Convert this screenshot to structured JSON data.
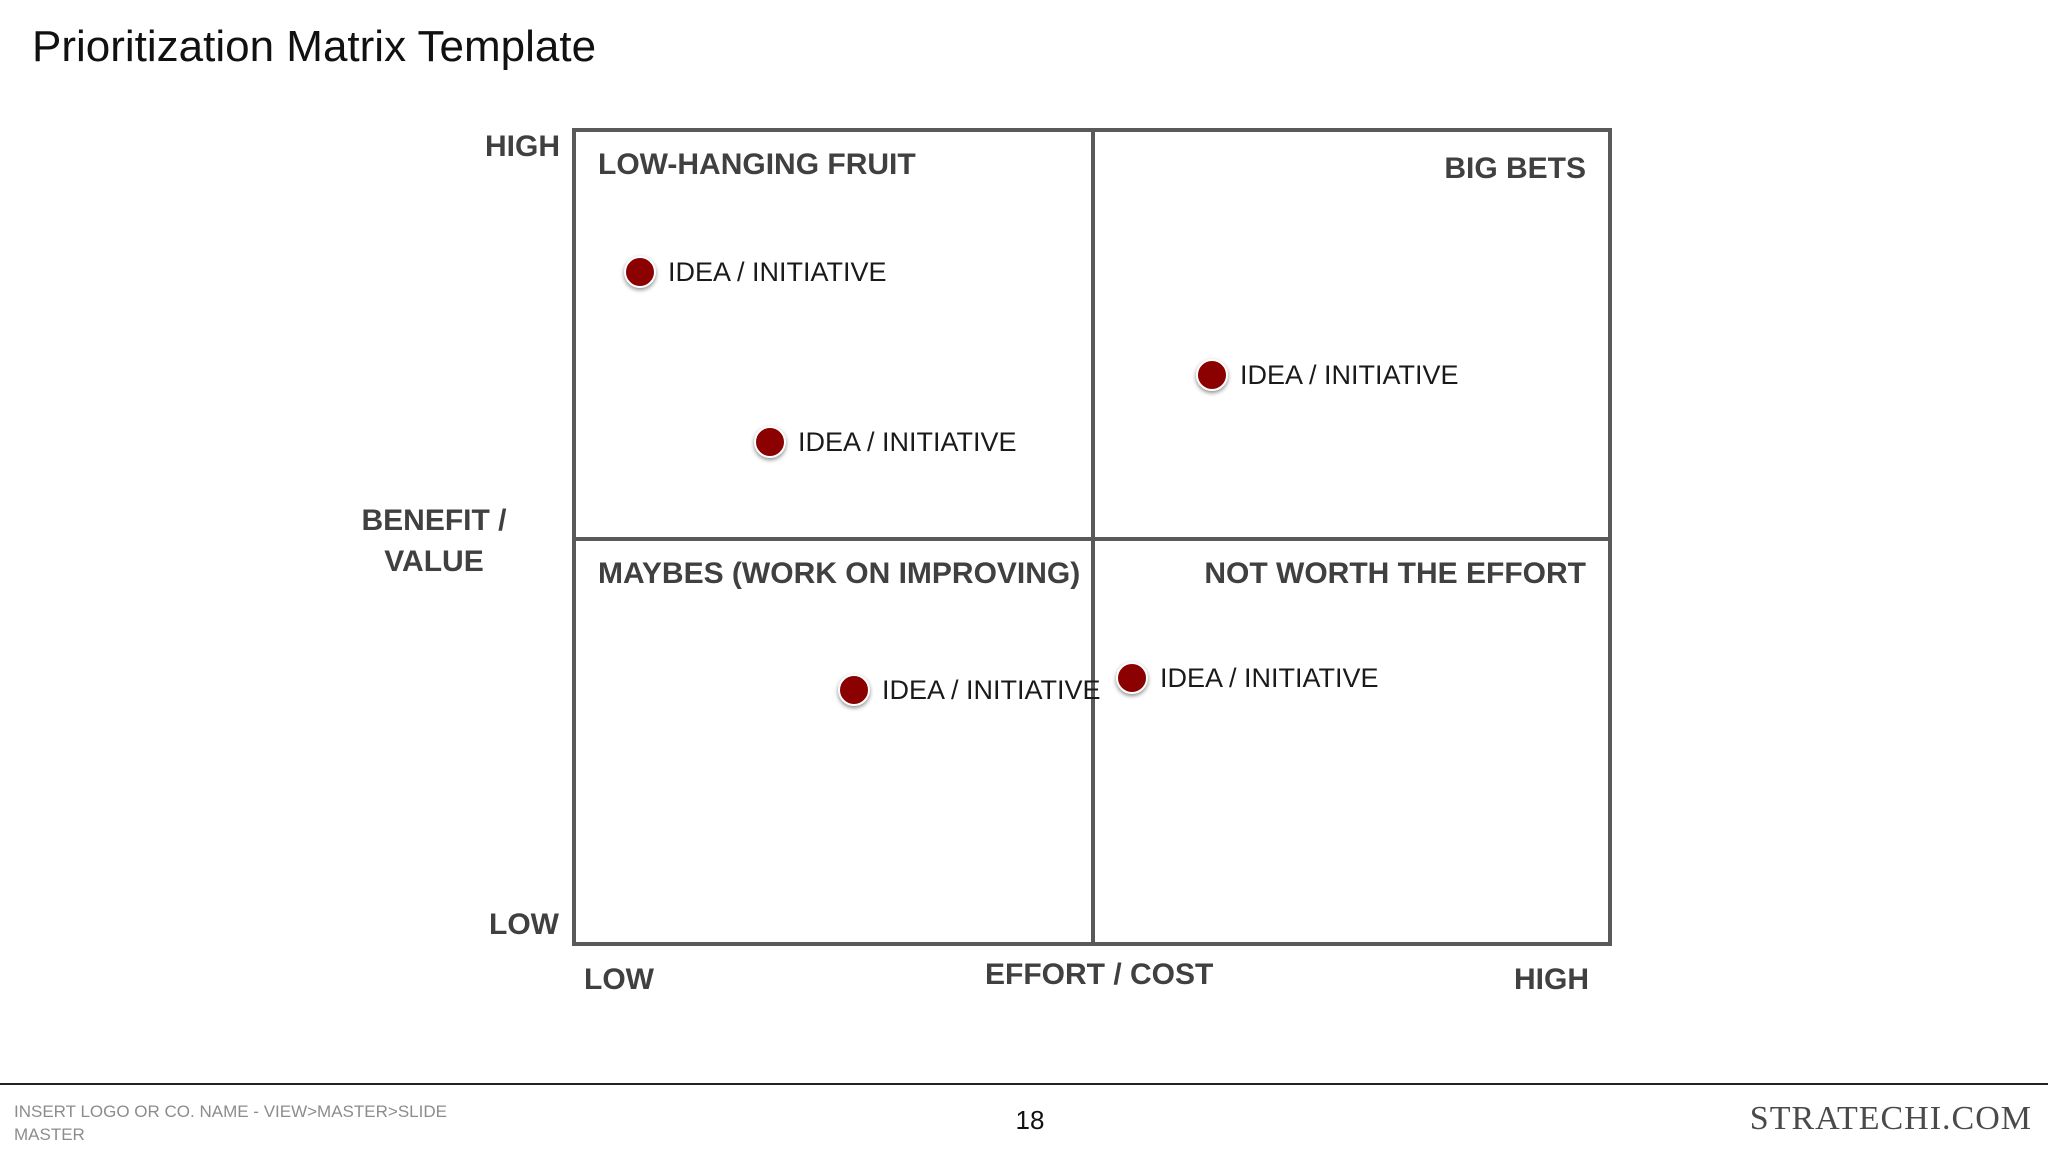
{
  "slide": {
    "title": "Prioritization Matrix Template"
  },
  "axes": {
    "y_high": "HIGH",
    "y_low": "LOW",
    "y_title": "BENEFIT / VALUE",
    "y_title_line1": "BENEFIT /",
    "y_title_line2": "VALUE",
    "x_low": "LOW",
    "x_title": "EFFORT / COST",
    "x_high": "HIGH"
  },
  "quadrants": {
    "top_left": "LOW-HANGING FRUIT",
    "top_right": "BIG BETS",
    "bottom_left": "MAYBES (WORK ON IMPROVING)",
    "bottom_right": "NOT WORTH THE EFFORT"
  },
  "items": [
    {
      "label": "IDEA / INITIATIVE",
      "quadrant": "LOW-HANGING FRUIT"
    },
    {
      "label": "IDEA / INITIATIVE",
      "quadrant": "LOW-HANGING FRUIT"
    },
    {
      "label": "IDEA / INITIATIVE",
      "quadrant": "BIG BETS"
    },
    {
      "label": "IDEA / INITIATIVE",
      "quadrant": "MAYBES (WORK ON IMPROVING)"
    },
    {
      "label": "IDEA / INITIATIVE",
      "quadrant": "NOT WORTH THE EFFORT"
    }
  ],
  "colors": {
    "marker": "#8b0000",
    "grid": "#595959",
    "label_text": "#404040"
  },
  "footer": {
    "logo_placeholder": "INSERT LOGO OR CO. NAME - VIEW>MASTER>SLIDE MASTER",
    "page_number": "18",
    "brand": "STRATECHI.COM"
  }
}
